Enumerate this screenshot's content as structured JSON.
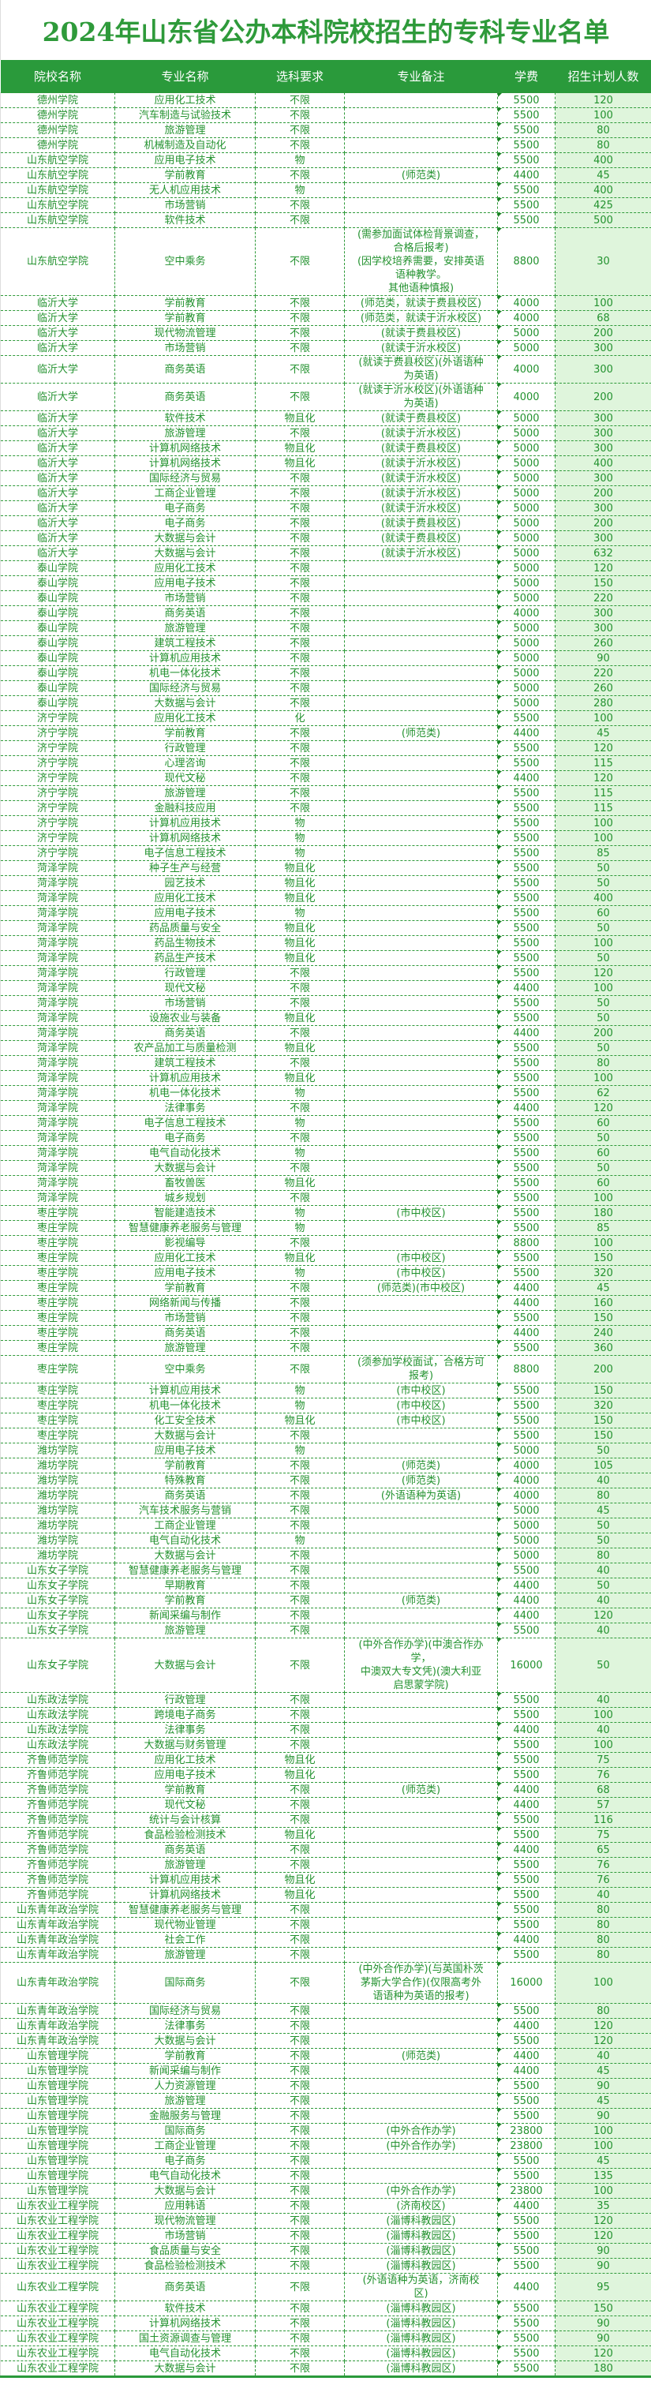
{
  "title": "2024年山东省公办本科院校招生的专科专业名单",
  "headers": [
    "院校名称",
    "专业名称",
    "选科要求",
    "专业备注",
    "学费",
    "招生计划人数"
  ],
  "colors": {
    "accent": "#2a9a3b",
    "text": "#23922f",
    "plan_bg": "#dff5dc"
  },
  "rows": [
    [
      "德州学院",
      "应用化工技术",
      "不限",
      "",
      "5500",
      "120"
    ],
    [
      "德州学院",
      "汽车制造与试验技术",
      "不限",
      "",
      "5500",
      "100"
    ],
    [
      "德州学院",
      "旅游管理",
      "不限",
      "",
      "5500",
      "80"
    ],
    [
      "德州学院",
      "机械制造及自动化",
      "不限",
      "",
      "5500",
      "80"
    ],
    [
      "山东航空学院",
      "应用电子技术",
      "物",
      "",
      "5500",
      "400"
    ],
    [
      "山东航空学院",
      "学前教育",
      "不限",
      "(师范类)",
      "4400",
      "45"
    ],
    [
      "山东航空学院",
      "无人机应用技术",
      "物",
      "",
      "5500",
      "400"
    ],
    [
      "山东航空学院",
      "市场营销",
      "不限",
      "",
      "5500",
      "425"
    ],
    [
      "山东航空学院",
      "软件技术",
      "不限",
      "",
      "5500",
      "500"
    ],
    [
      "山东航空学院",
      "空中乘务",
      "不限",
      "(需参加面试体检背景调查，\n合格后报考)\n(因学校培养需要，安排英语\n语种教学。\n其他语种慎报)",
      "8800",
      "30"
    ],
    [
      "临沂大学",
      "学前教育",
      "不限",
      "(师范类，就读于费县校区)",
      "4000",
      "100"
    ],
    [
      "临沂大学",
      "学前教育",
      "不限",
      "(师范类，就读于沂水校区)",
      "4000",
      "68"
    ],
    [
      "临沂大学",
      "现代物流管理",
      "不限",
      "(就读于费县校区)",
      "5000",
      "200"
    ],
    [
      "临沂大学",
      "市场营销",
      "不限",
      "(就读于沂水校区)",
      "5000",
      "300"
    ],
    [
      "临沂大学",
      "商务英语",
      "不限",
      "(就读于费县校区)(外语语种\n为英语)",
      "4000",
      "300"
    ],
    [
      "临沂大学",
      "商务英语",
      "不限",
      "(就读于沂水校区)(外语语种\n为英语)",
      "4000",
      "200"
    ],
    [
      "临沂大学",
      "软件技术",
      "物且化",
      "(就读于费县校区)",
      "5000",
      "300"
    ],
    [
      "临沂大学",
      "旅游管理",
      "不限",
      "(就读于沂水校区)",
      "5000",
      "300"
    ],
    [
      "临沂大学",
      "计算机网络技术",
      "物且化",
      "(就读于费县校区)",
      "5000",
      "300"
    ],
    [
      "临沂大学",
      "计算机网络技术",
      "物且化",
      "(就读于沂水校区)",
      "5000",
      "400"
    ],
    [
      "临沂大学",
      "国际经济与贸易",
      "不限",
      "(就读于沂水校区)",
      "5000",
      "300"
    ],
    [
      "临沂大学",
      "工商企业管理",
      "不限",
      "(就读于沂水校区)",
      "5000",
      "200"
    ],
    [
      "临沂大学",
      "电子商务",
      "不限",
      "(就读于沂水校区)",
      "5000",
      "300"
    ],
    [
      "临沂大学",
      "电子商务",
      "不限",
      "(就读于费县校区)",
      "5000",
      "200"
    ],
    [
      "临沂大学",
      "大数据与会计",
      "不限",
      "(就读于费县校区)",
      "5000",
      "300"
    ],
    [
      "临沂大学",
      "大数据与会计",
      "不限",
      "(就读于沂水校区)",
      "5000",
      "632"
    ],
    [
      "泰山学院",
      "应用化工技术",
      "不限",
      "",
      "5000",
      "120"
    ],
    [
      "泰山学院",
      "应用电子技术",
      "不限",
      "",
      "5000",
      "150"
    ],
    [
      "泰山学院",
      "市场营销",
      "不限",
      "",
      "5000",
      "220"
    ],
    [
      "泰山学院",
      "商务英语",
      "不限",
      "",
      "4000",
      "300"
    ],
    [
      "泰山学院",
      "旅游管理",
      "不限",
      "",
      "5000",
      "300"
    ],
    [
      "泰山学院",
      "建筑工程技术",
      "不限",
      "",
      "5000",
      "260"
    ],
    [
      "泰山学院",
      "计算机应用技术",
      "不限",
      "",
      "5000",
      "90"
    ],
    [
      "泰山学院",
      "机电一体化技术",
      "不限",
      "",
      "5000",
      "220"
    ],
    [
      "泰山学院",
      "国际经济与贸易",
      "不限",
      "",
      "5000",
      "260"
    ],
    [
      "泰山学院",
      "大数据与会计",
      "不限",
      "",
      "5000",
      "280"
    ],
    [
      "济宁学院",
      "应用化工技术",
      "化",
      "",
      "5500",
      "100"
    ],
    [
      "济宁学院",
      "学前教育",
      "不限",
      "(师范类)",
      "4400",
      "45"
    ],
    [
      "济宁学院",
      "行政管理",
      "不限",
      "",
      "5500",
      "120"
    ],
    [
      "济宁学院",
      "心理咨询",
      "不限",
      "",
      "5500",
      "115"
    ],
    [
      "济宁学院",
      "现代文秘",
      "不限",
      "",
      "4400",
      "120"
    ],
    [
      "济宁学院",
      "旅游管理",
      "不限",
      "",
      "5500",
      "115"
    ],
    [
      "济宁学院",
      "金融科技应用",
      "不限",
      "",
      "5500",
      "115"
    ],
    [
      "济宁学院",
      "计算机应用技术",
      "物",
      "",
      "5500",
      "100"
    ],
    [
      "济宁学院",
      "计算机网络技术",
      "物",
      "",
      "5500",
      "100"
    ],
    [
      "济宁学院",
      "电子信息工程技术",
      "物",
      "",
      "5500",
      "85"
    ],
    [
      "菏泽学院",
      "种子生产与经营",
      "物且化",
      "",
      "5500",
      "50"
    ],
    [
      "菏泽学院",
      "园艺技术",
      "物且化",
      "",
      "5500",
      "50"
    ],
    [
      "菏泽学院",
      "应用化工技术",
      "物且化",
      "",
      "5500",
      "400"
    ],
    [
      "菏泽学院",
      "应用电子技术",
      "物",
      "",
      "5500",
      "60"
    ],
    [
      "菏泽学院",
      "药品质量与安全",
      "物且化",
      "",
      "5500",
      "50"
    ],
    [
      "菏泽学院",
      "药品生物技术",
      "物且化",
      "",
      "5500",
      "100"
    ],
    [
      "菏泽学院",
      "药品生产技术",
      "物且化",
      "",
      "5500",
      "50"
    ],
    [
      "菏泽学院",
      "行政管理",
      "不限",
      "",
      "5500",
      "120"
    ],
    [
      "菏泽学院",
      "现代文秘",
      "不限",
      "",
      "4400",
      "100"
    ],
    [
      "菏泽学院",
      "市场营销",
      "不限",
      "",
      "5500",
      "50"
    ],
    [
      "菏泽学院",
      "设施农业与装备",
      "物且化",
      "",
      "5500",
      "50"
    ],
    [
      "菏泽学院",
      "商务英语",
      "不限",
      "",
      "4400",
      "200"
    ],
    [
      "菏泽学院",
      "农产品加工与质量检测",
      "物且化",
      "",
      "5500",
      "50"
    ],
    [
      "菏泽学院",
      "建筑工程技术",
      "不限",
      "",
      "5500",
      "80"
    ],
    [
      "菏泽学院",
      "计算机应用技术",
      "物且化",
      "",
      "5500",
      "100"
    ],
    [
      "菏泽学院",
      "机电一体化技术",
      "物",
      "",
      "5500",
      "62"
    ],
    [
      "菏泽学院",
      "法律事务",
      "不限",
      "",
      "4400",
      "120"
    ],
    [
      "菏泽学院",
      "电子信息工程技术",
      "物",
      "",
      "5500",
      "60"
    ],
    [
      "菏泽学院",
      "电子商务",
      "不限",
      "",
      "5500",
      "50"
    ],
    [
      "菏泽学院",
      "电气自动化技术",
      "物",
      "",
      "5500",
      "60"
    ],
    [
      "菏泽学院",
      "大数据与会计",
      "不限",
      "",
      "5500",
      "50"
    ],
    [
      "菏泽学院",
      "畜牧兽医",
      "物且化",
      "",
      "5500",
      "60"
    ],
    [
      "菏泽学院",
      "城乡规划",
      "不限",
      "",
      "5500",
      "100"
    ],
    [
      "枣庄学院",
      "智能建造技术",
      "物",
      "(市中校区)",
      "5500",
      "180"
    ],
    [
      "枣庄学院",
      "智慧健康养老服务与管理",
      "物",
      "",
      "5500",
      "85"
    ],
    [
      "枣庄学院",
      "影视编导",
      "不限",
      "",
      "8800",
      "100"
    ],
    [
      "枣庄学院",
      "应用化工技术",
      "物且化",
      "(市中校区)",
      "5500",
      "150"
    ],
    [
      "枣庄学院",
      "应用电子技术",
      "物",
      "(市中校区)",
      "5500",
      "320"
    ],
    [
      "枣庄学院",
      "学前教育",
      "不限",
      "(师范类)(市中校区)",
      "4400",
      "45"
    ],
    [
      "枣庄学院",
      "网络新闻与传播",
      "不限",
      "",
      "4400",
      "160"
    ],
    [
      "枣庄学院",
      "市场营销",
      "不限",
      "",
      "5500",
      "150"
    ],
    [
      "枣庄学院",
      "商务英语",
      "不限",
      "",
      "4400",
      "240"
    ],
    [
      "枣庄学院",
      "旅游管理",
      "不限",
      "",
      "5500",
      "360"
    ],
    [
      "枣庄学院",
      "空中乘务",
      "不限",
      "(须参加学校面试，合格方可\n报考)",
      "8800",
      "200"
    ],
    [
      "枣庄学院",
      "计算机应用技术",
      "物",
      "(市中校区)",
      "5500",
      "150"
    ],
    [
      "枣庄学院",
      "机电一体化技术",
      "物",
      "(市中校区)",
      "5500",
      "320"
    ],
    [
      "枣庄学院",
      "化工安全技术",
      "物且化",
      "(市中校区)",
      "5500",
      "150"
    ],
    [
      "枣庄学院",
      "大数据与会计",
      "不限",
      "",
      "5500",
      "150"
    ],
    [
      "潍坊学院",
      "应用电子技术",
      "物",
      "",
      "5000",
      "50"
    ],
    [
      "潍坊学院",
      "学前教育",
      "不限",
      "(师范类)",
      "4000",
      "105"
    ],
    [
      "潍坊学院",
      "特殊教育",
      "不限",
      "(师范类)",
      "4000",
      "40"
    ],
    [
      "潍坊学院",
      "商务英语",
      "不限",
      "(外语语种为英语)",
      "4000",
      "80"
    ],
    [
      "潍坊学院",
      "汽车技术服务与营销",
      "不限",
      "",
      "5000",
      "45"
    ],
    [
      "潍坊学院",
      "工商企业管理",
      "不限",
      "",
      "5000",
      "50"
    ],
    [
      "潍坊学院",
      "电气自动化技术",
      "物",
      "",
      "5000",
      "50"
    ],
    [
      "潍坊学院",
      "大数据与会计",
      "不限",
      "",
      "5000",
      "80"
    ],
    [
      "山东女子学院",
      "智慧健康养老服务与管理",
      "不限",
      "",
      "5500",
      "40"
    ],
    [
      "山东女子学院",
      "早期教育",
      "不限",
      "",
      "4400",
      "50"
    ],
    [
      "山东女子学院",
      "学前教育",
      "不限",
      "(师范类)",
      "4400",
      "40"
    ],
    [
      "山东女子学院",
      "新闻采编与制作",
      "不限",
      "",
      "4400",
      "120"
    ],
    [
      "山东女子学院",
      "旅游管理",
      "不限",
      "",
      "5500",
      "40"
    ],
    [
      "山东女子学院",
      "大数据与会计",
      "不限",
      "(中外合作办学)(中澳合作办\n学，\n中澳双大专文凭)(澳大利亚\n启思蒙学院)",
      "16000",
      "50"
    ],
    [
      "山东政法学院",
      "行政管理",
      "不限",
      "",
      "5500",
      "40"
    ],
    [
      "山东政法学院",
      "跨境电子商务",
      "不限",
      "",
      "5500",
      "100"
    ],
    [
      "山东政法学院",
      "法律事务",
      "不限",
      "",
      "4400",
      "40"
    ],
    [
      "山东政法学院",
      "大数据与财务管理",
      "不限",
      "",
      "5500",
      "100"
    ],
    [
      "齐鲁师范学院",
      "应用化工技术",
      "物且化",
      "",
      "5500",
      "75"
    ],
    [
      "齐鲁师范学院",
      "应用电子技术",
      "物且化",
      "",
      "5500",
      "76"
    ],
    [
      "齐鲁师范学院",
      "学前教育",
      "不限",
      "(师范类)",
      "4400",
      "68"
    ],
    [
      "齐鲁师范学院",
      "现代文秘",
      "不限",
      "",
      "4400",
      "57"
    ],
    [
      "齐鲁师范学院",
      "统计与会计核算",
      "不限",
      "",
      "5500",
      "116"
    ],
    [
      "齐鲁师范学院",
      "食品检验检测技术",
      "物且化",
      "",
      "5500",
      "75"
    ],
    [
      "齐鲁师范学院",
      "商务英语",
      "不限",
      "",
      "4400",
      "65"
    ],
    [
      "齐鲁师范学院",
      "旅游管理",
      "不限",
      "",
      "5500",
      "76"
    ],
    [
      "齐鲁师范学院",
      "计算机应用技术",
      "物且化",
      "",
      "5500",
      "76"
    ],
    [
      "齐鲁师范学院",
      "计算机网络技术",
      "物且化",
      "",
      "5500",
      "40"
    ],
    [
      "山东青年政治学院",
      "智慧健康养老服务与管理",
      "不限",
      "",
      "5500",
      "80"
    ],
    [
      "山东青年政治学院",
      "现代物业管理",
      "不限",
      "",
      "5500",
      "80"
    ],
    [
      "山东青年政治学院",
      "社会工作",
      "不限",
      "",
      "4400",
      "80"
    ],
    [
      "山东青年政治学院",
      "旅游管理",
      "不限",
      "",
      "5500",
      "80"
    ],
    [
      "山东青年政治学院",
      "国际商务",
      "不限",
      "(中外合作办学)(与英国朴茨\n茅斯大学合作)(仅限高考外\n语语种为英语的报考)",
      "16000",
      "100"
    ],
    [
      "山东青年政治学院",
      "国际经济与贸易",
      "不限",
      "",
      "5500",
      "80"
    ],
    [
      "山东青年政治学院",
      "法律事务",
      "不限",
      "",
      "4400",
      "120"
    ],
    [
      "山东青年政治学院",
      "大数据与会计",
      "不限",
      "",
      "5500",
      "120"
    ],
    [
      "山东管理学院",
      "学前教育",
      "不限",
      "(师范类)",
      "4400",
      "40"
    ],
    [
      "山东管理学院",
      "新闻采编与制作",
      "不限",
      "",
      "4400",
      "45"
    ],
    [
      "山东管理学院",
      "人力资源管理",
      "不限",
      "",
      "5500",
      "90"
    ],
    [
      "山东管理学院",
      "旅游管理",
      "不限",
      "",
      "5500",
      "45"
    ],
    [
      "山东管理学院",
      "金融服务与管理",
      "不限",
      "",
      "5500",
      "90"
    ],
    [
      "山东管理学院",
      "国际商务",
      "不限",
      "(中外合作办学)",
      "23800",
      "100"
    ],
    [
      "山东管理学院",
      "工商企业管理",
      "不限",
      "(中外合作办学)",
      "23800",
      "100"
    ],
    [
      "山东管理学院",
      "电子商务",
      "不限",
      "",
      "5500",
      "45"
    ],
    [
      "山东管理学院",
      "电气自动化技术",
      "不限",
      "",
      "5500",
      "135"
    ],
    [
      "山东管理学院",
      "大数据与会计",
      "不限",
      "(中外合作办学)",
      "23800",
      "100"
    ],
    [
      "山东农业工程学院",
      "应用韩语",
      "不限",
      "(济南校区)",
      "4400",
      "35"
    ],
    [
      "山东农业工程学院",
      "现代物流管理",
      "不限",
      "(淄博科教园区)",
      "5500",
      "120"
    ],
    [
      "山东农业工程学院",
      "市场营销",
      "不限",
      "(淄博科教园区)",
      "5500",
      "120"
    ],
    [
      "山东农业工程学院",
      "食品质量与安全",
      "不限",
      "(淄博科教园区)",
      "5500",
      "90"
    ],
    [
      "山东农业工程学院",
      "食品检验检测技术",
      "不限",
      "(淄博科教园区)",
      "5500",
      "90"
    ],
    [
      "山东农业工程学院",
      "商务英语",
      "不限",
      "(外语语种为英语，济南校\n区)",
      "4400",
      "95"
    ],
    [
      "山东农业工程学院",
      "软件技术",
      "不限",
      "(淄博科教园区)",
      "5500",
      "150"
    ],
    [
      "山东农业工程学院",
      "计算机网络技术",
      "不限",
      "(淄博科教园区)",
      "5500",
      "90"
    ],
    [
      "山东农业工程学院",
      "国土资源调查与管理",
      "不限",
      "(淄博科教园区)",
      "5500",
      "90"
    ],
    [
      "山东农业工程学院",
      "电气自动化技术",
      "不限",
      "(淄博科教园区)",
      "5500",
      "120"
    ],
    [
      "山东农业工程学院",
      "大数据与会计",
      "不限",
      "(淄博科教园区)",
      "5500",
      "180"
    ]
  ]
}
